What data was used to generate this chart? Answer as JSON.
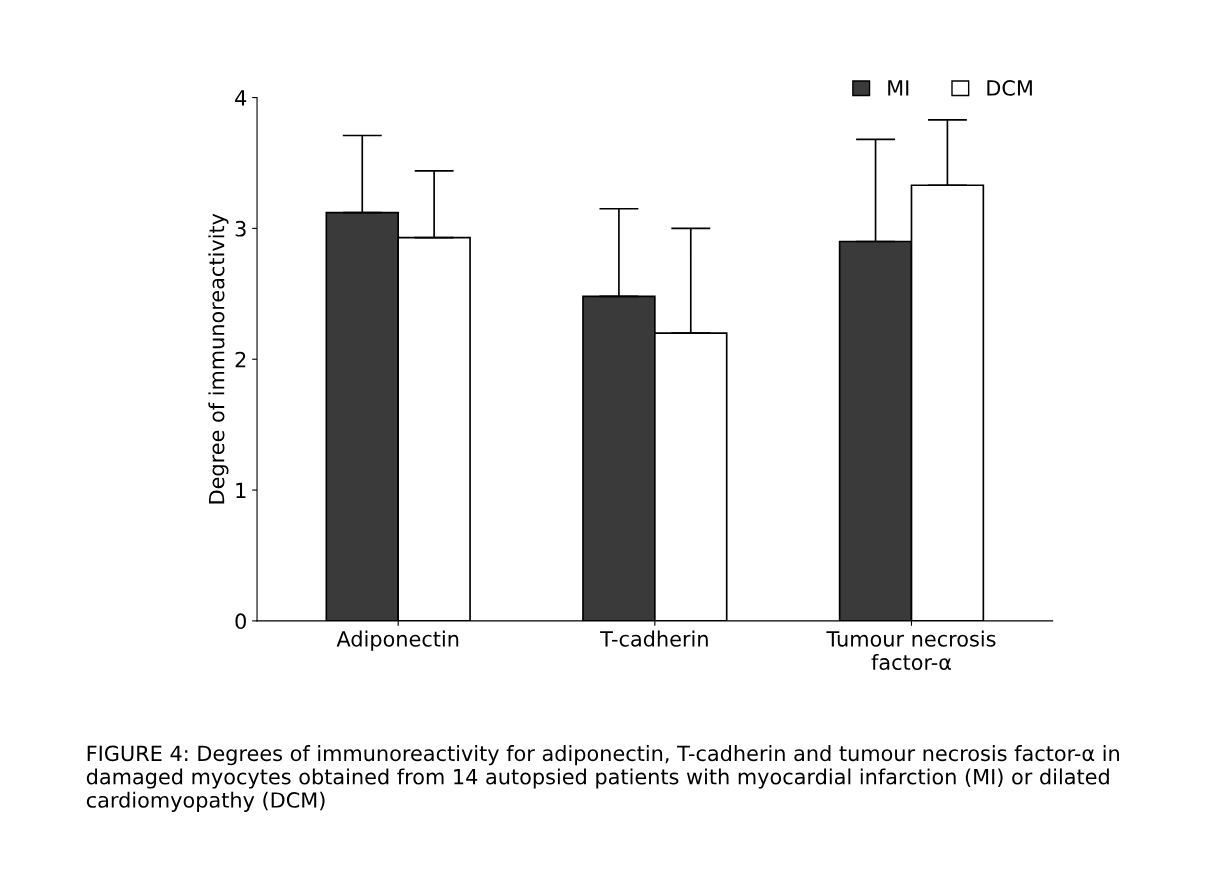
{
  "chart_data": {
    "type": "bar",
    "ylabel": "Degree of immunoreactivity",
    "categories": [
      "Adiponectin",
      "T-cadherin",
      "Tumour necrosis\nfactor-α"
    ],
    "series": [
      {
        "name": "MI",
        "color": "#3a3a3a",
        "values": [
          3.12,
          2.48,
          2.9
        ],
        "errors": [
          [
            3.12,
            3.71
          ],
          [
            2.48,
            3.15
          ],
          [
            2.9,
            3.68
          ]
        ]
      },
      {
        "name": "DCM",
        "color": "#ffffff",
        "values": [
          2.93,
          2.2,
          3.33
        ],
        "errors": [
          [
            2.93,
            3.44
          ],
          [
            2.2,
            3.0
          ],
          [
            3.33,
            3.83
          ]
        ]
      }
    ],
    "ylim": [
      0,
      4
    ],
    "yticks": [
      0,
      1,
      2,
      3,
      4
    ],
    "grid": false,
    "legend": "top right",
    "annotations": [
      "FIGURE 4: Degrees of immunoreactivity for adiponectin, T-cadherin and tumour necrosis factor-α in damaged myocytes obtained from 14 autopsied patients with myocardial infarction (MI) or dilated cardiomyopathy (DCM)"
    ]
  }
}
